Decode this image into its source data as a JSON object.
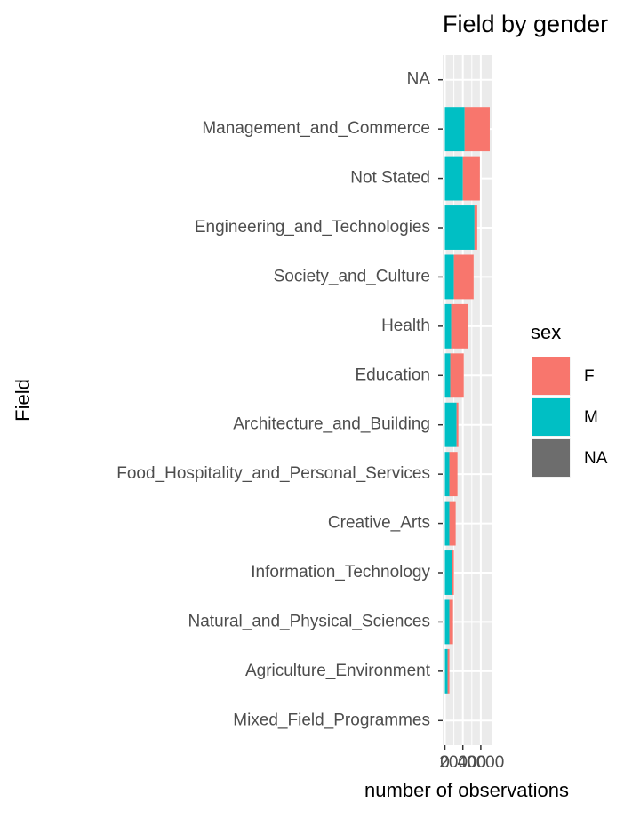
{
  "chart_data": {
    "type": "bar",
    "orientation": "horizontal",
    "stacked": true,
    "title": "Field by gender",
    "x_label": "number of observations",
    "y_label": "Field",
    "legend_title": "sex",
    "categories": [
      "NA",
      "Management_and_Commerce",
      "Not Stated",
      "Engineering_and_Technologies",
      "Society_and_Culture",
      "Health",
      "Education",
      "Architecture_and_Building",
      "Food_Hospitality_and_Personal_Services",
      "Creative_Arts",
      "Information_Technology",
      "Natural_and_Physical_Sciences",
      "Agriculture_Environment",
      "Mixed_Field_Programmes"
    ],
    "series": [
      {
        "name": "M",
        "color": "#00bfc4",
        "values": [
          0,
          22000,
          20000,
          33000,
          10000,
          7000,
          6000,
          13000,
          5000,
          5000,
          8000,
          5000,
          3000,
          0
        ]
      },
      {
        "name": "F",
        "color": "#f8766d",
        "values": [
          0,
          28000,
          19000,
          3000,
          22000,
          19000,
          15000,
          2000,
          9000,
          7000,
          2000,
          4000,
          2000,
          0
        ]
      },
      {
        "name": "NA",
        "color": "#6d6d6d",
        "values": [
          0,
          0,
          0,
          0,
          0,
          0,
          0,
          0,
          0,
          0,
          0,
          0,
          0,
          0
        ]
      }
    ],
    "legend_order": [
      "F",
      "M",
      "NA"
    ],
    "xlim": [
      -2500,
      52000
    ],
    "xticks": [
      0,
      20000,
      40000
    ],
    "grid": true
  }
}
